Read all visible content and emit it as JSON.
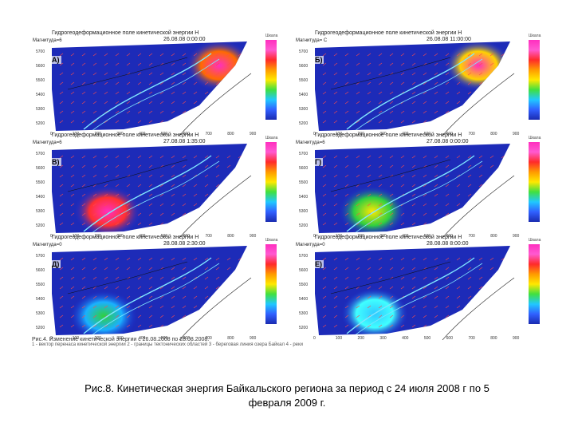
{
  "figure": {
    "panels": [
      {
        "label": "А)",
        "title": "Гидрогеодеформационное поле кинетической энергии Н",
        "date": "26.08.08 0:00:00",
        "mag": "Магнитуда=6",
        "hot": "ne"
      },
      {
        "label": "Б)",
        "title": "Гидрогеодеформационное поле кинетической энергии Н",
        "date": "26.08.08 11:00:00",
        "mag": "Магнитуда= С",
        "hot": "ne2"
      },
      {
        "label": "В)",
        "title": "Гидрогеодеформационное поле кинетической энергии Н",
        "date": "27.08.08 1:35:00",
        "mag": "Магнитуда=6",
        "hot": "sw"
      },
      {
        "label": "Г)",
        "title": "Гидрогеодеформационное поле кинетической энергии Н",
        "date": "27.08.08 0:00:00",
        "mag": "Магнитуда=6",
        "hot": "sw2"
      },
      {
        "label": "Д)",
        "title": "Гидрогеодеформационное поле кинетической энергии Н",
        "date": "28.08.08 2:30:00",
        "mag": "Магнитуда=0",
        "hot": "sw3"
      },
      {
        "label": "Е)",
        "title": "Гидрогеодеформационное поле кинетической энергии Н",
        "date": "28.08.08 8:00:00",
        "mag": "Магнитуда=0",
        "hot": "sw4"
      }
    ],
    "colorbar_title": "Шкала",
    "axis_x_ticks": [
      "0",
      "100",
      "200",
      "300",
      "400",
      "500",
      "600",
      "700",
      "800",
      "900"
    ],
    "axis_y_ticks": [
      "5700",
      "5600",
      "5500",
      "5400",
      "5300",
      "5200"
    ],
    "legend_title": "Рис.4. Изменение кинетической энергии с 26.08.2008 по 28.08.2008.",
    "legend_line": "1 - вектор перенаса кинетической энергии 2 - границы тектонических областей 3 - береговая линия озера Байкал 4 - реки"
  },
  "caption_line1": "Рис.8. Кинетическая энергия Байкальского региона за период с 24 июля 2008 г по 5",
  "caption_line2": "февраля 2009 г."
}
